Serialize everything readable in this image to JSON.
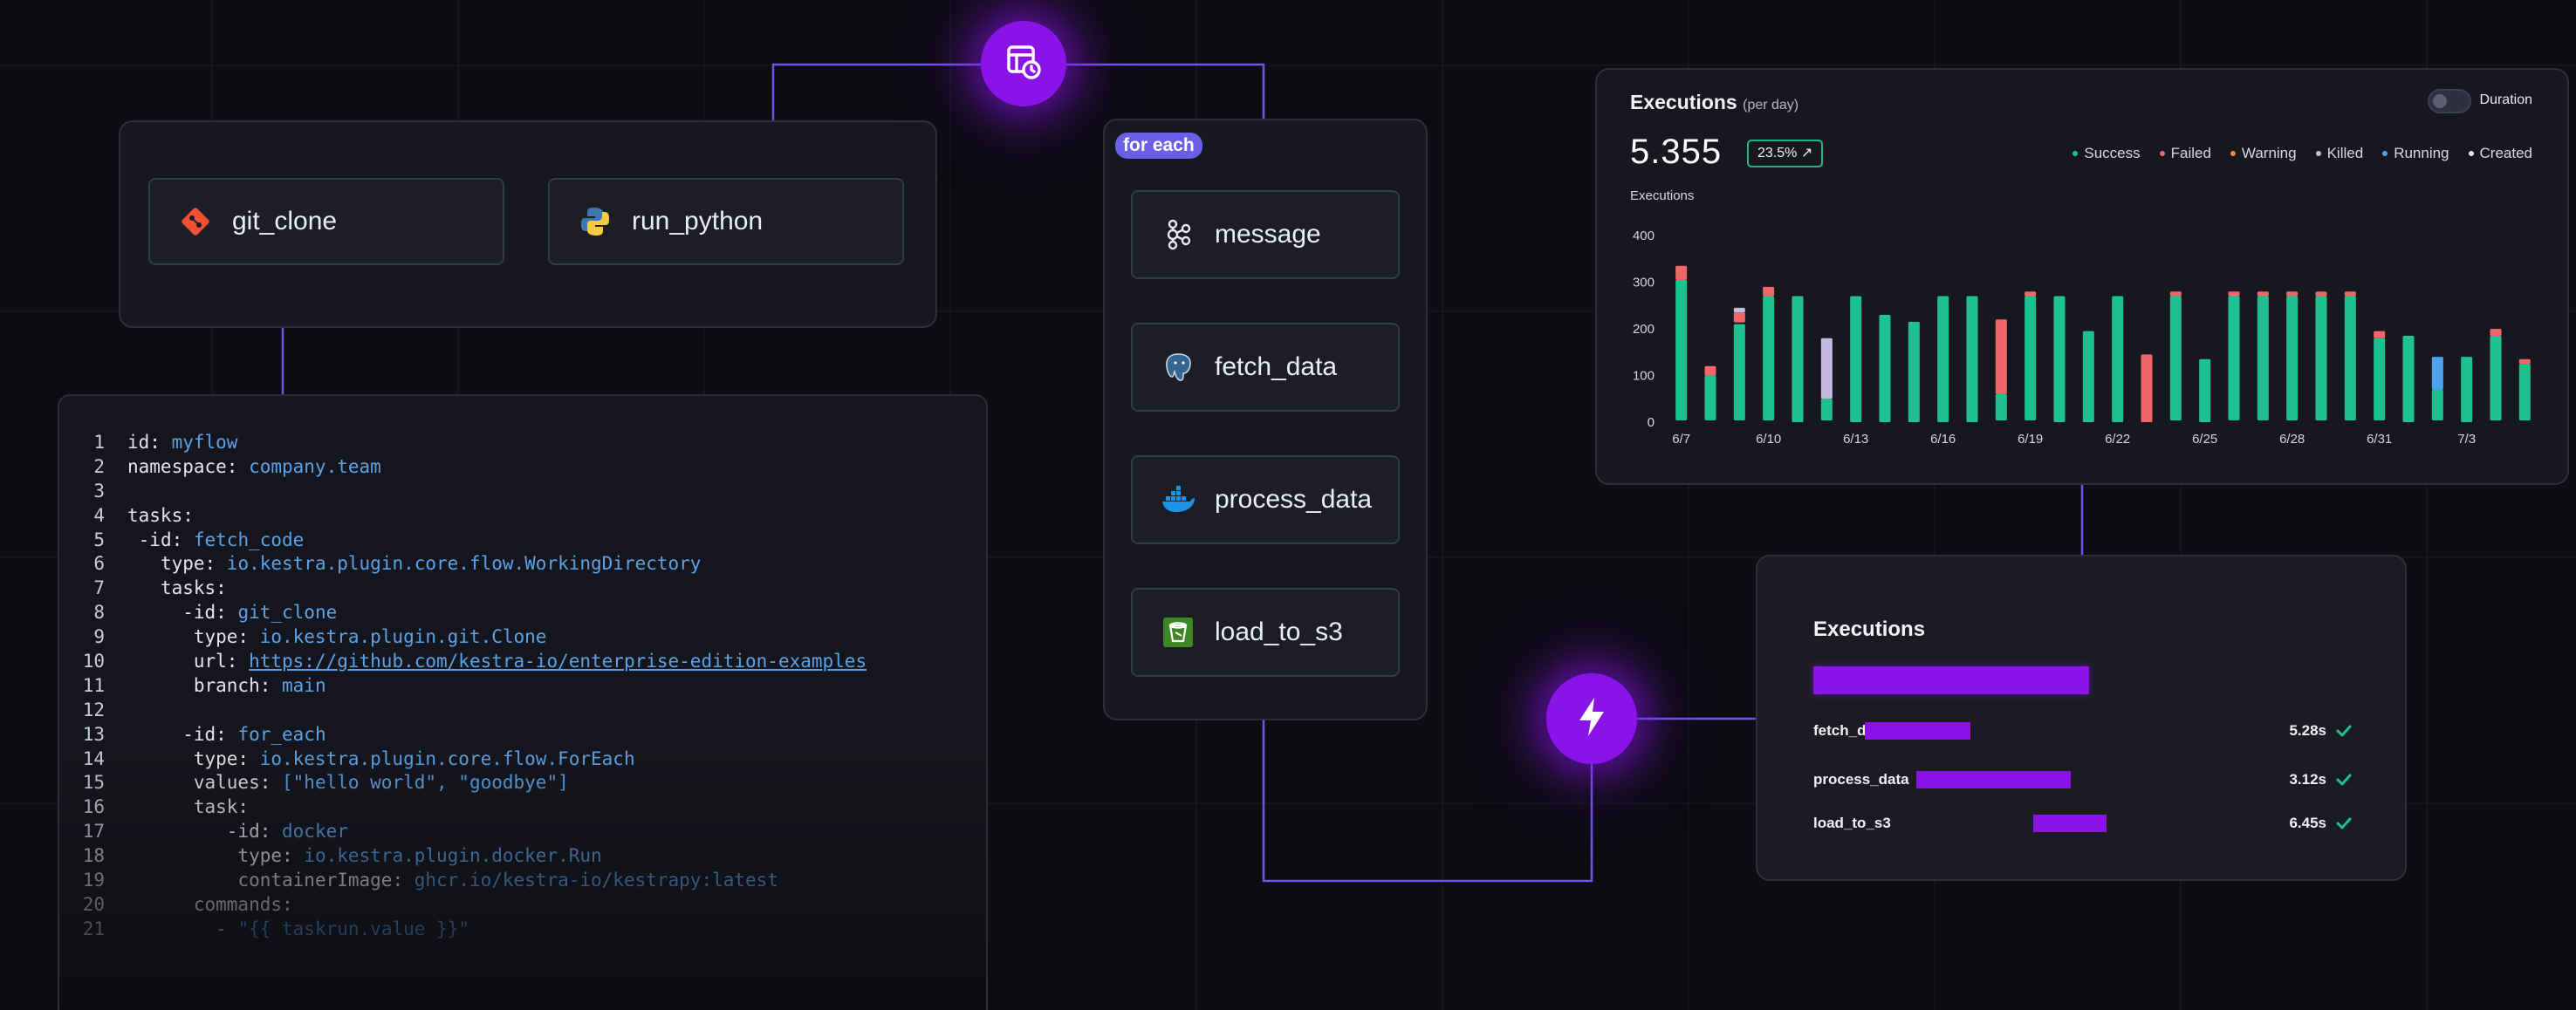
{
  "flow1": {
    "nodes": [
      {
        "label": "git_clone",
        "icon": "git-icon"
      },
      {
        "label": "run_python",
        "icon": "python-icon"
      }
    ]
  },
  "flow2": {
    "badge": "for each",
    "nodes": [
      {
        "label": "message",
        "icon": "kafka-icon"
      },
      {
        "label": "fetch_data",
        "icon": "postgres-icon"
      },
      {
        "label": "process_data",
        "icon": "docker-icon"
      },
      {
        "label": "load_to_s3",
        "icon": "s3-bucket-icon"
      }
    ]
  },
  "code": {
    "lines": [
      {
        "n": "1",
        "indent": "",
        "parts": [
          [
            "k",
            "id: "
          ],
          [
            "v",
            "myflow"
          ]
        ]
      },
      {
        "n": "2",
        "indent": "",
        "parts": [
          [
            "k",
            "namespace: "
          ],
          [
            "v",
            "company.team"
          ]
        ]
      },
      {
        "n": "3",
        "indent": "",
        "parts": []
      },
      {
        "n": "4",
        "indent": "",
        "parts": [
          [
            "k",
            "tasks:"
          ]
        ]
      },
      {
        "n": "5",
        "indent": " ",
        "parts": [
          [
            "k",
            "-id: "
          ],
          [
            "v",
            "fetch_code"
          ]
        ]
      },
      {
        "n": "6",
        "indent": "   ",
        "parts": [
          [
            "k",
            "type: "
          ],
          [
            "v",
            "io.kestra.plugin.core.flow.WorkingDirectory"
          ]
        ]
      },
      {
        "n": "7",
        "indent": "   ",
        "parts": [
          [
            "k",
            "tasks:"
          ]
        ]
      },
      {
        "n": "8",
        "indent": "     ",
        "parts": [
          [
            "k",
            "-id: "
          ],
          [
            "v",
            "git_clone"
          ]
        ]
      },
      {
        "n": "9",
        "indent": "      ",
        "parts": [
          [
            "k",
            "type: "
          ],
          [
            "v",
            "io.kestra.plugin.git.Clone"
          ]
        ]
      },
      {
        "n": "10",
        "indent": "      ",
        "parts": [
          [
            "k",
            "url: "
          ],
          [
            "u",
            "https://github.com/kestra-io/enterprise-edition-examples"
          ]
        ]
      },
      {
        "n": "11",
        "indent": "      ",
        "parts": [
          [
            "k",
            "branch: "
          ],
          [
            "v",
            "main"
          ]
        ]
      },
      {
        "n": "12",
        "indent": "",
        "parts": []
      },
      {
        "n": "13",
        "indent": "     ",
        "parts": [
          [
            "k",
            "-id: "
          ],
          [
            "v",
            "for_each"
          ]
        ]
      },
      {
        "n": "14",
        "indent": "      ",
        "parts": [
          [
            "k",
            "type: "
          ],
          [
            "v",
            "io.kestra.plugin.core.flow.ForEach"
          ]
        ]
      },
      {
        "n": "15",
        "indent": "      ",
        "parts": [
          [
            "k",
            "values: "
          ],
          [
            "v",
            "[\"hello world\", \"goodbye\"]"
          ]
        ]
      },
      {
        "n": "16",
        "indent": "      ",
        "parts": [
          [
            "k",
            "task:"
          ]
        ]
      },
      {
        "n": "17",
        "indent": "         ",
        "parts": [
          [
            "k",
            "-id: "
          ],
          [
            "v",
            "docker"
          ]
        ]
      },
      {
        "n": "18",
        "indent": "          ",
        "parts": [
          [
            "k",
            "type: "
          ],
          [
            "v",
            "io.kestra.plugin.docker.Run"
          ]
        ]
      },
      {
        "n": "19",
        "indent": "          ",
        "parts": [
          [
            "k",
            "containerImage: "
          ],
          [
            "v",
            "ghcr.io/kestra-io/kestrapy:latest"
          ]
        ]
      },
      {
        "n": "20",
        "indent": "      ",
        "parts": [
          [
            "k",
            "commands:"
          ]
        ]
      },
      {
        "n": "21",
        "indent": "        ",
        "parts": [
          [
            "k",
            "- "
          ],
          [
            "v",
            "\"{{ taskrun.value }}\""
          ]
        ]
      }
    ]
  },
  "executions_chart": {
    "title": "Executions",
    "title_suffix": "(per day)",
    "total": "5.355",
    "change": "23.5% ↗",
    "toggle_label": "Duration",
    "y_axis_label": "Executions",
    "legend": [
      {
        "label": "Success",
        "color": "#1fc28e"
      },
      {
        "label": "Failed",
        "color": "#f0676a"
      },
      {
        "label": "Warning",
        "color": "#f08a4b"
      },
      {
        "label": "Killed",
        "color": "#c4b8e0"
      },
      {
        "label": "Running",
        "color": "#4da3ee"
      },
      {
        "label": "Created",
        "color": "#e8e8ee"
      }
    ]
  },
  "chart_data": {
    "type": "bar",
    "stacked": true,
    "ylabel": "Executions",
    "ylim": [
      0,
      400
    ],
    "yticks": [
      0,
      100,
      200,
      300,
      400
    ],
    "xticks": [
      "6/7",
      "6/10",
      "6/13",
      "6/16",
      "6/19",
      "6/22",
      "6/25",
      "6/28",
      "6/31",
      "7/3"
    ],
    "xtick_index": [
      0,
      3,
      6,
      9,
      12,
      15,
      18,
      21,
      24,
      27
    ],
    "categories": [
      "6/7",
      "6/8",
      "6/9",
      "6/10",
      "6/11",
      "6/12",
      "6/13",
      "6/14",
      "6/15",
      "6/16",
      "6/17",
      "6/18",
      "6/19",
      "6/20",
      "6/21",
      "6/22",
      "6/23",
      "6/24",
      "6/25",
      "6/26",
      "6/27",
      "6/28",
      "6/29",
      "6/30",
      "6/31",
      "7/1",
      "7/2",
      "7/3",
      "7/4",
      "7/5"
    ],
    "series": [
      {
        "name": "Success",
        "color": "#1fc28e",
        "values": [
          305,
          100,
          210,
          270,
          270,
          50,
          270,
          230,
          215,
          270,
          270,
          60,
          270,
          270,
          195,
          270,
          0,
          270,
          135,
          270,
          270,
          270,
          270,
          270,
          180,
          185,
          70,
          140,
          185,
          125
        ]
      },
      {
        "name": "Failed",
        "color": "#f0676a",
        "values": [
          30,
          20,
          25,
          20,
          0,
          0,
          0,
          0,
          0,
          0,
          0,
          160,
          10,
          0,
          0,
          0,
          145,
          10,
          0,
          10,
          10,
          10,
          10,
          10,
          15,
          0,
          0,
          0,
          15,
          10
        ]
      },
      {
        "name": "Killed",
        "color": "#c4b8e0",
        "values": [
          0,
          0,
          10,
          0,
          0,
          130,
          0,
          0,
          0,
          0,
          0,
          0,
          0,
          0,
          0,
          0,
          0,
          0,
          0,
          0,
          0,
          0,
          0,
          0,
          0,
          0,
          0,
          0,
          0,
          0
        ]
      },
      {
        "name": "Running",
        "color": "#4da3ee",
        "values": [
          0,
          0,
          0,
          0,
          0,
          0,
          0,
          0,
          0,
          0,
          0,
          0,
          0,
          0,
          0,
          0,
          0,
          0,
          0,
          0,
          0,
          0,
          0,
          0,
          0,
          0,
          70,
          0,
          0,
          0
        ]
      }
    ]
  },
  "executions_summary": {
    "title": "Executions",
    "overall_fraction": 1.0,
    "rows": [
      {
        "name": "fetch_data",
        "duration": "5.28s",
        "status": "success",
        "start": 0.08,
        "end": 0.21
      },
      {
        "name": "process_data",
        "duration": "3.12s",
        "status": "success",
        "start": 0.16,
        "end": 0.35
      },
      {
        "name": "load_to_s3",
        "duration": "6.45s",
        "status": "success",
        "start": 0.34,
        "end": 0.43
      }
    ]
  }
}
